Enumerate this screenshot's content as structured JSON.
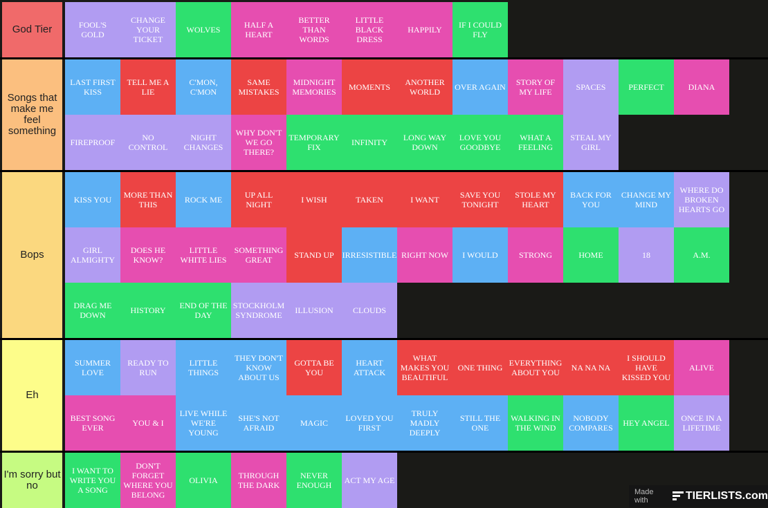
{
  "colors": {
    "purple": "#b19cf2",
    "green": "#2ee06f",
    "pink": "#e64eb0",
    "red": "#ec4444",
    "blue": "#5db0f4",
    "background": "#1a1a17"
  },
  "tiers": [
    {
      "label": "God Tier",
      "color": "#f06a6a",
      "items": [
        {
          "text": "FOOL'S GOLD",
          "color": "purple"
        },
        {
          "text": "CHANGE YOUR TICKET",
          "color": "purple"
        },
        {
          "text": "WOLVES",
          "color": "green"
        },
        {
          "text": "HALF A HEART",
          "color": "pink"
        },
        {
          "text": "BETTER THAN WORDS",
          "color": "pink"
        },
        {
          "text": "LITTLE BLACK DRESS",
          "color": "pink"
        },
        {
          "text": "HAPPILY",
          "color": "pink"
        },
        {
          "text": "IF I COULD FLY",
          "color": "green"
        }
      ]
    },
    {
      "label": "Songs that make me feel something",
      "color": "#fbbf7f",
      "items": [
        {
          "text": "LAST FIRST KISS",
          "color": "blue"
        },
        {
          "text": "TELL ME A LIE",
          "color": "red"
        },
        {
          "text": "C'MON, C'MON",
          "color": "blue"
        },
        {
          "text": "SAME MISTAKES",
          "color": "red"
        },
        {
          "text": "MIDNIGHT MEMORIES",
          "color": "pink"
        },
        {
          "text": "MOMENTS",
          "color": "red"
        },
        {
          "text": "ANOTHER WORLD",
          "color": "red"
        },
        {
          "text": "OVER AGAIN",
          "color": "blue"
        },
        {
          "text": "STORY OF MY LIFE",
          "color": "pink"
        },
        {
          "text": "SPACES",
          "color": "purple"
        },
        {
          "text": "PERFECT",
          "color": "green"
        },
        {
          "text": "DIANA",
          "color": "pink"
        },
        {
          "text": "FIREPROOF",
          "color": "purple"
        },
        {
          "text": "NO CONTROL",
          "color": "purple"
        },
        {
          "text": "NIGHT CHANGES",
          "color": "purple"
        },
        {
          "text": "WHY DON'T WE GO THERE?",
          "color": "pink"
        },
        {
          "text": "TEMPORARY FIX",
          "color": "green"
        },
        {
          "text": "INFINITY",
          "color": "green"
        },
        {
          "text": "LONG WAY DOWN",
          "color": "green"
        },
        {
          "text": "LOVE YOU GOODBYE",
          "color": "green"
        },
        {
          "text": "WHAT A FEELING",
          "color": "green"
        },
        {
          "text": "STEAL MY GIRL",
          "color": "purple"
        }
      ]
    },
    {
      "label": "Bops",
      "color": "#fbd87f",
      "items": [
        {
          "text": "KISS YOU",
          "color": "blue"
        },
        {
          "text": "MORE THAN THIS",
          "color": "red"
        },
        {
          "text": "ROCK ME",
          "color": "blue"
        },
        {
          "text": "UP ALL NIGHT",
          "color": "red"
        },
        {
          "text": "I WISH",
          "color": "red"
        },
        {
          "text": "TAKEN",
          "color": "red"
        },
        {
          "text": "I WANT",
          "color": "red"
        },
        {
          "text": "SAVE YOU TONIGHT",
          "color": "red"
        },
        {
          "text": "STOLE MY HEART",
          "color": "red"
        },
        {
          "text": "BACK FOR YOU",
          "color": "blue"
        },
        {
          "text": "CHANGE MY MIND",
          "color": "blue"
        },
        {
          "text": "WHERE DO BROKEN HEARTS GO",
          "color": "purple"
        },
        {
          "text": "GIRL ALMIGHTY",
          "color": "purple"
        },
        {
          "text": "DOES HE KNOW?",
          "color": "pink"
        },
        {
          "text": "LITTLE WHITE LIES",
          "color": "pink"
        },
        {
          "text": "SOMETHING GREAT",
          "color": "pink"
        },
        {
          "text": "STAND UP",
          "color": "red"
        },
        {
          "text": "IRRESISTIBLE",
          "color": "blue"
        },
        {
          "text": "RIGHT NOW",
          "color": "pink"
        },
        {
          "text": "I WOULD",
          "color": "blue"
        },
        {
          "text": "STRONG",
          "color": "pink"
        },
        {
          "text": "HOME",
          "color": "green"
        },
        {
          "text": "18",
          "color": "purple"
        },
        {
          "text": "A.M.",
          "color": "green"
        },
        {
          "text": "DRAG ME DOWN",
          "color": "green"
        },
        {
          "text": "HISTORY",
          "color": "green"
        },
        {
          "text": "END OF THE DAY",
          "color": "green"
        },
        {
          "text": "STOCKHOLM SYNDROME",
          "color": "purple"
        },
        {
          "text": "ILLUSION",
          "color": "purple"
        },
        {
          "text": "CLOUDS",
          "color": "purple"
        }
      ]
    },
    {
      "label": "Eh",
      "color": "#fdfd8a",
      "items": [
        {
          "text": "SUMMER LOVE",
          "color": "blue"
        },
        {
          "text": "READY TO RUN",
          "color": "purple"
        },
        {
          "text": "LITTLE THINGS",
          "color": "blue"
        },
        {
          "text": "THEY DON'T KNOW ABOUT US",
          "color": "blue"
        },
        {
          "text": "GOTTA BE YOU",
          "color": "red"
        },
        {
          "text": "HEART ATTACK",
          "color": "blue"
        },
        {
          "text": "WHAT MAKES YOU BEAUTIFUL",
          "color": "red"
        },
        {
          "text": "ONE THING",
          "color": "red"
        },
        {
          "text": "EVERYTHING ABOUT YOU",
          "color": "red"
        },
        {
          "text": "NA NA NA",
          "color": "red"
        },
        {
          "text": "I SHOULD HAVE KISSED YOU",
          "color": "red"
        },
        {
          "text": "ALIVE",
          "color": "pink"
        },
        {
          "text": "BEST SONG EVER",
          "color": "pink"
        },
        {
          "text": "YOU & I",
          "color": "pink"
        },
        {
          "text": "LIVE WHILE WE'RE YOUNG",
          "color": "blue"
        },
        {
          "text": "SHE'S NOT AFRAID",
          "color": "blue"
        },
        {
          "text": "MAGIC",
          "color": "blue"
        },
        {
          "text": "LOVED YOU FIRST",
          "color": "blue"
        },
        {
          "text": "TRULY MADLY DEEPLY",
          "color": "blue"
        },
        {
          "text": "STILL THE ONE",
          "color": "blue"
        },
        {
          "text": "WALKING IN THE WIND",
          "color": "green"
        },
        {
          "text": "NOBODY COMPARES",
          "color": "blue"
        },
        {
          "text": "HEY ANGEL",
          "color": "green"
        },
        {
          "text": "ONCE IN A LIFETIME",
          "color": "purple"
        }
      ]
    },
    {
      "label": "I'm sorry but no",
      "color": "#c6fb82",
      "items": [
        {
          "text": "I WANT TO WRITE YOU A SONG",
          "color": "green"
        },
        {
          "text": "DON'T FORGET WHERE YOU BELONG",
          "color": "pink"
        },
        {
          "text": "OLIVIA",
          "color": "green"
        },
        {
          "text": "THROUGH THE DARK",
          "color": "pink"
        },
        {
          "text": "NEVER ENOUGH",
          "color": "green"
        },
        {
          "text": "ACT MY AGE",
          "color": "purple"
        }
      ]
    }
  ],
  "credit": {
    "made_with": "Made with",
    "brand": "TIERLISTS.com"
  }
}
